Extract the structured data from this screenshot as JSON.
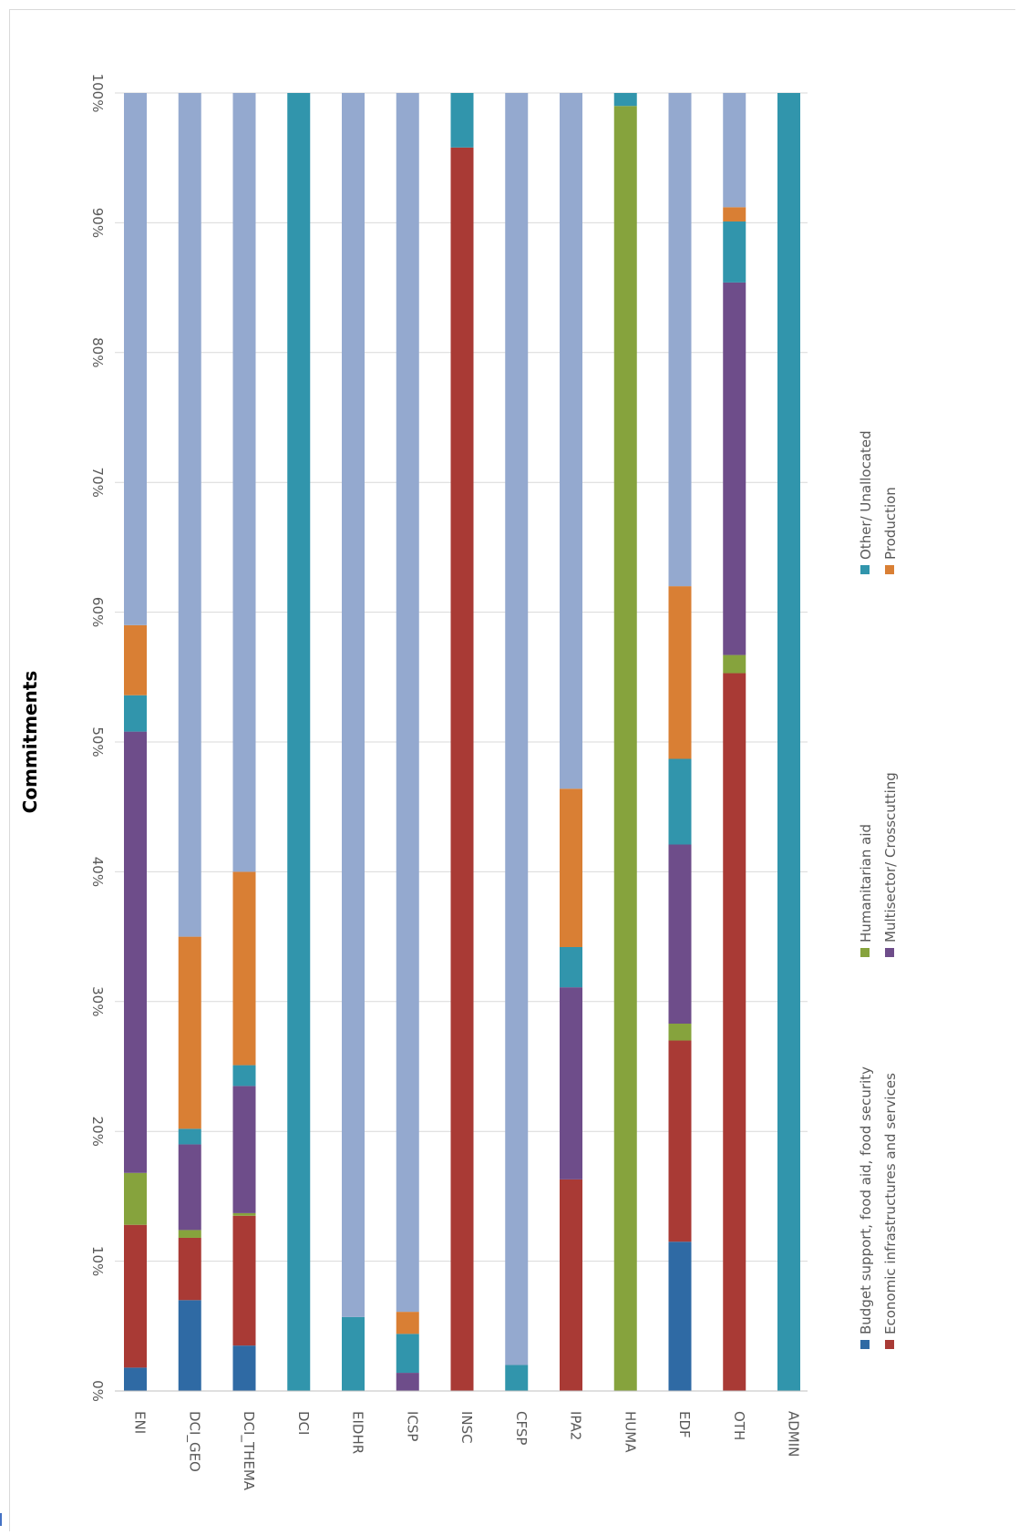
{
  "chart_data": {
    "type": "bar",
    "stacked": true,
    "percent": true,
    "orientation": "rotated-90-clockwise",
    "title": "Commitments",
    "xlabel": "",
    "ylabel": "",
    "ylim": [
      0,
      100
    ],
    "yticks": [
      "0%",
      "10%",
      "20%",
      "30%",
      "40%",
      "50%",
      "60%",
      "70%",
      "80%",
      "90%",
      "100%"
    ],
    "grid": true,
    "legend_position": "bottom",
    "categories": [
      "ENI",
      "DCI_GEO",
      "DCI_THEMA",
      "DCI",
      "EIDHR",
      "ICSP",
      "INSC",
      "CFSP",
      "IPA2",
      "HUMA",
      "EDF",
      "OTH",
      "ADMIN"
    ],
    "series": [
      {
        "name": "Budget support, food aid, food security",
        "color": "#2f6aa4",
        "values": [
          1.8,
          7.0,
          3.5,
          0,
          0,
          0,
          0,
          0,
          0,
          0,
          11.5,
          0,
          0
        ]
      },
      {
        "name": "Economic infrastructures and services",
        "color": "#a93a35",
        "values": [
          11.0,
          4.8,
          10.0,
          0,
          0,
          0,
          95.8,
          0,
          16.3,
          0,
          15.5,
          55.3,
          0
        ]
      },
      {
        "name": "Humanitarian aid",
        "color": "#86a33d",
        "values": [
          4.0,
          0.6,
          0.2,
          0,
          0,
          0,
          0,
          0,
          0,
          99.0,
          1.3,
          1.4,
          0
        ]
      },
      {
        "name": "Multisector/ Crosscutting",
        "color": "#6e4d8a",
        "values": [
          34.0,
          6.6,
          9.8,
          0,
          0,
          1.4,
          0,
          0,
          14.8,
          0,
          13.8,
          28.7,
          0
        ]
      },
      {
        "name": "Other/ Unallocated",
        "color": "#3195ac",
        "values": [
          2.8,
          1.2,
          1.6,
          100,
          5.7,
          3.0,
          4.2,
          2.0,
          3.1,
          1.0,
          6.6,
          4.7,
          100
        ]
      },
      {
        "name": "Production",
        "color": "#d97f34",
        "values": [
          5.4,
          14.8,
          14.9,
          0,
          0,
          1.7,
          0,
          0,
          12.2,
          0,
          13.3,
          1.1,
          0
        ]
      },
      {
        "name": "",
        "color": "#94a9cf",
        "values": [
          41.0,
          65.0,
          60.0,
          0,
          94.3,
          93.9,
          0,
          98.0,
          53.6,
          0,
          38.0,
          8.8,
          0
        ]
      }
    ]
  }
}
